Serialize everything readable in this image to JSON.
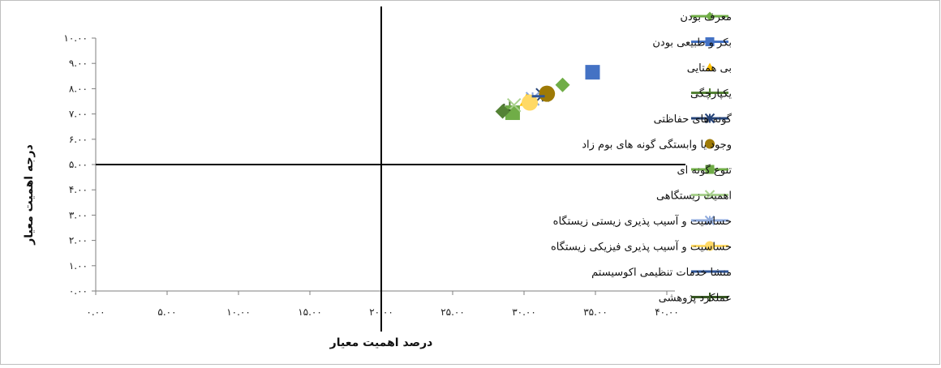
{
  "chart_data": {
    "type": "scatter",
    "xlabel": "درصد اهمیت معیار",
    "ylabel": "درجه اهمیت معیار",
    "xlim": [
      0,
      40
    ],
    "ylim": [
      0,
      10
    ],
    "x_ticks": [
      0,
      5,
      10,
      15,
      20,
      25,
      30,
      35,
      40
    ],
    "y_ticks": [
      0,
      1,
      2,
      3,
      4,
      5,
      6,
      7,
      8,
      9,
      10
    ],
    "x_tick_labels": [
      "۰.۰۰",
      "۵.۰۰",
      "۱۰.۰۰",
      "۱۵.۰۰",
      "۲۰.۰۰",
      "۲۵.۰۰",
      "۳۰.۰۰",
      "۳۵.۰۰",
      "۴۰.۰۰"
    ],
    "y_tick_labels": [
      "۰.۰۰",
      "۱.۰۰",
      "۲.۰۰",
      "۳.۰۰",
      "۴.۰۰",
      "۵.۰۰",
      "۶.۰۰",
      "۷.۰۰",
      "۸.۰۰",
      "۹.۰۰",
      "۱۰.۰۰"
    ],
    "reference_lines": {
      "x": 20,
      "y": 5
    },
    "grid": false,
    "legend_position": "right",
    "series": [
      {
        "name": "معرف بودن",
        "marker": "diamond",
        "color": "#70ad47",
        "line": true,
        "x": 32.7,
        "y": 8.15
      },
      {
        "name": "بکر و طبیعی بودن",
        "marker": "square",
        "color": "#4472c4",
        "line": true,
        "x": 34.8,
        "y": 8.65
      },
      {
        "name": "بی همتایی",
        "marker": "triangle",
        "color": "#ffc000",
        "line": false,
        "x": 30.2,
        "y": 7.55
      },
      {
        "name": "یکپارچگی",
        "marker": "plus",
        "color": "#548235",
        "line": true,
        "x": 29.0,
        "y": 7.25
      },
      {
        "name": "گونه های حفاظتی",
        "marker": "asterisk",
        "color": "#264478",
        "line": true,
        "x": 31.3,
        "y": 7.75
      },
      {
        "name": "وجود یا وابستگی گونه های بوم زاد",
        "marker": "circle",
        "color": "#9e7a06",
        "line": false,
        "x": 31.6,
        "y": 7.8
      },
      {
        "name": "تنوع گونه ای",
        "marker": "square",
        "color": "#70ad47",
        "line": true,
        "x": 29.2,
        "y": 7.05
      },
      {
        "name": "اهمیت زیستگاهی",
        "marker": "x",
        "color": "#a9d18e",
        "line": true,
        "x": 29.3,
        "y": 7.35
      },
      {
        "name": "حساسیت و آسیب پذیری زیستی زیستگاه",
        "marker": "asterisk",
        "color": "#8faadc",
        "line": true,
        "x": 30.6,
        "y": 7.6
      },
      {
        "name": "حساسیت و آسیب پذیری فیزیکی زیستگاه",
        "marker": "circle",
        "color": "#ffd966",
        "line": true,
        "x": 30.4,
        "y": 7.45
      },
      {
        "name": "منشا خدمات  تنظیمی اکوسیستم",
        "marker": "dash",
        "color": "#2f5597",
        "line": true,
        "x": 31.0,
        "y": 7.7
      },
      {
        "name": "عملکرد پژوهشی",
        "marker": "plus",
        "color": "#385723",
        "line": true,
        "x": 28.6,
        "y": 7.15
      },
      {
        "name": "",
        "marker": "diamond",
        "color": "#548235",
        "line": false,
        "x": 28.5,
        "y": 7.1
      }
    ]
  }
}
